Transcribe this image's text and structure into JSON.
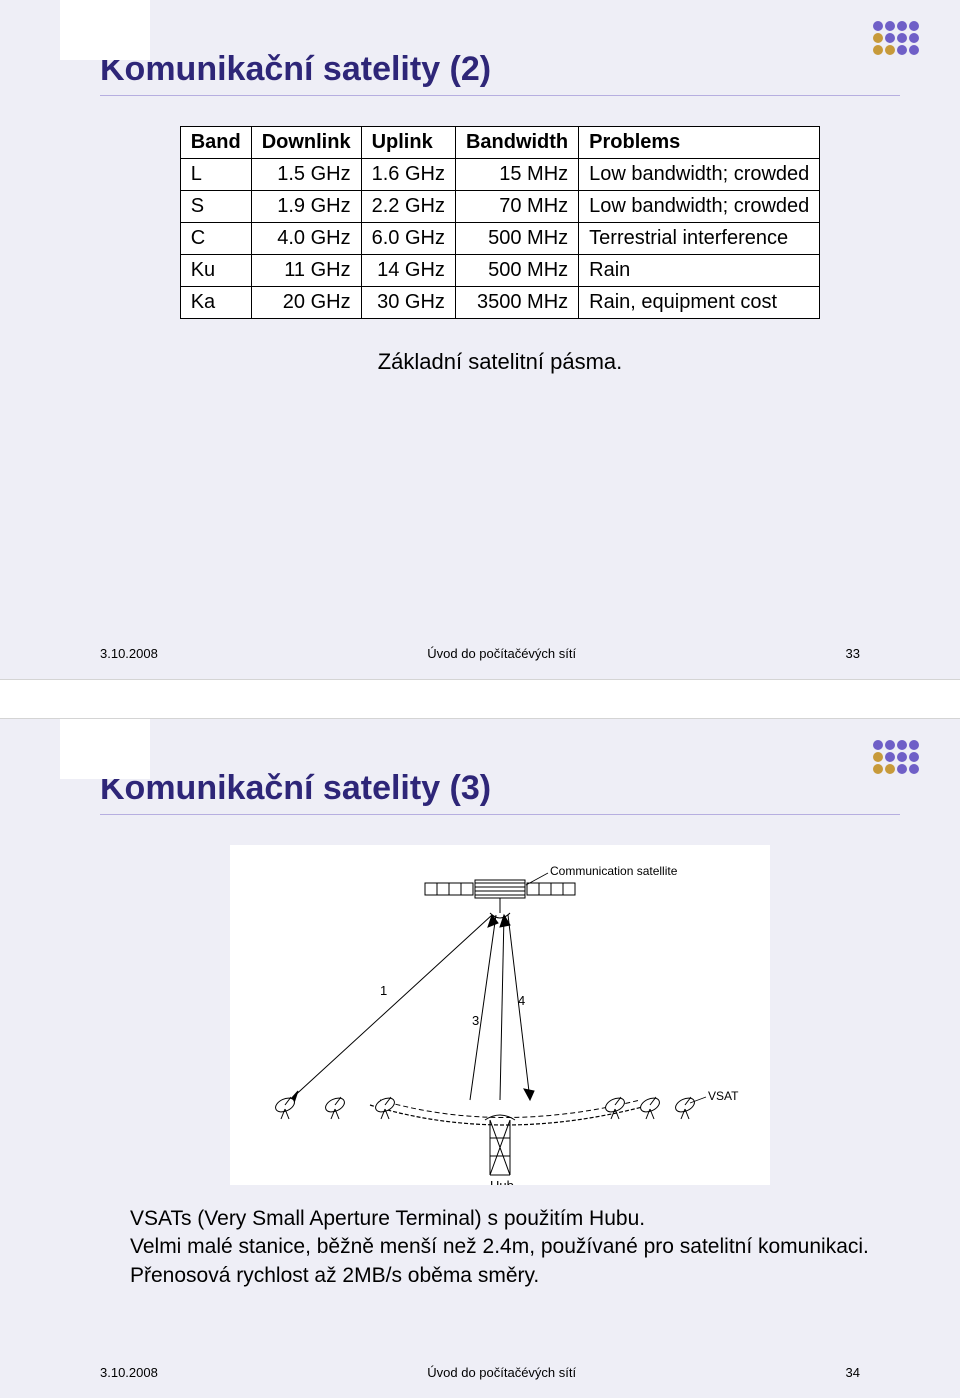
{
  "dot_colors": {
    "row1": [
      "#6f5fc7",
      "#6f5fc7",
      "#6f5fc7",
      "#6f5fc7"
    ],
    "row2": [
      "#c79a3a",
      "#6f5fc7",
      "#6f5fc7",
      "#6f5fc7"
    ],
    "row3": [
      "#c79a3a",
      "#c79a3a",
      "#6f5fc7",
      "#6f5fc7"
    ]
  },
  "slide1": {
    "title": "Komunikační satelity (2)",
    "table": {
      "headers": [
        "Band",
        "Downlink",
        "Uplink",
        "Bandwidth",
        "Problems"
      ],
      "rows": [
        [
          "L",
          "1.5 GHz",
          "1.6 GHz",
          "15 MHz",
          "Low bandwidth; crowded"
        ],
        [
          "S",
          "1.9 GHz",
          "2.2 GHz",
          "70 MHz",
          "Low bandwidth; crowded"
        ],
        [
          "C",
          "4.0 GHz",
          "6.0 GHz",
          "500 MHz",
          "Terrestrial interference"
        ],
        [
          "Ku",
          "11 GHz",
          "14 GHz",
          "500 MHz",
          "Rain"
        ],
        [
          "Ka",
          "20 GHz",
          "30 GHz",
          "3500 MHz",
          "Rain, equipment cost"
        ]
      ]
    },
    "caption": "Základní satelitní pásma.",
    "footer": {
      "date": "3.10.2008",
      "center": "Úvod do počítačévých sítí",
      "page": "33"
    }
  },
  "slide2": {
    "title": "Komunikační satelity (3)",
    "diagram": {
      "sat_label": "Communication satellite",
      "vsat_label": "VSAT",
      "hub_label": "Hub",
      "beam_labels": [
        "1",
        "3",
        "4"
      ]
    },
    "text_lines": [
      "VSATs  (Very Small Aperture Terminal) s použitím Hubu.",
      "Velmi malé stanice, běžně menší než 2.4m, používané pro satelitní komunikaci.",
      "Přenosová rychlost až 2MB/s oběma směry."
    ],
    "footer": {
      "date": "3.10.2008",
      "center": "Úvod do počítačévých sítí",
      "page": "34"
    }
  },
  "colors": {
    "slide_bg": "#eeeef6",
    "title_color": "#2e2678",
    "rule_color": "#b6aee0"
  }
}
